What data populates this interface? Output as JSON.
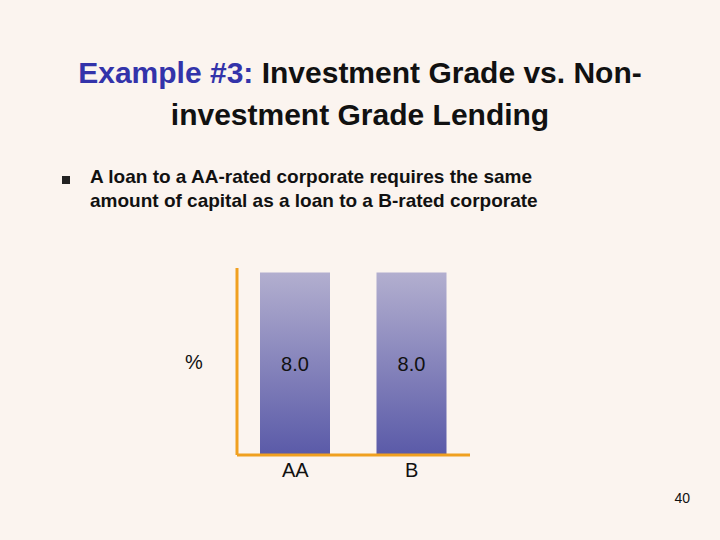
{
  "chart_data": {
    "type": "bar",
    "title": "Example #3: Investment Grade vs. Non-investment Grade Lending",
    "subtitle": "A loan to a AA-rated corporate requires the same amount of capital as a loan to a B-rated corporate",
    "y_label": "%",
    "categories": [
      "AA",
      "B"
    ],
    "values": [
      8.0,
      8.0
    ],
    "value_labels": [
      "8.0",
      "8.0"
    ],
    "data_labels": true,
    "color": "#5a5aa8",
    "ylim": [
      0,
      8.2
    ],
    "yticks": [],
    "tick_labels": "x",
    "grid": false,
    "annotations": [
      "40"
    ]
  }
}
